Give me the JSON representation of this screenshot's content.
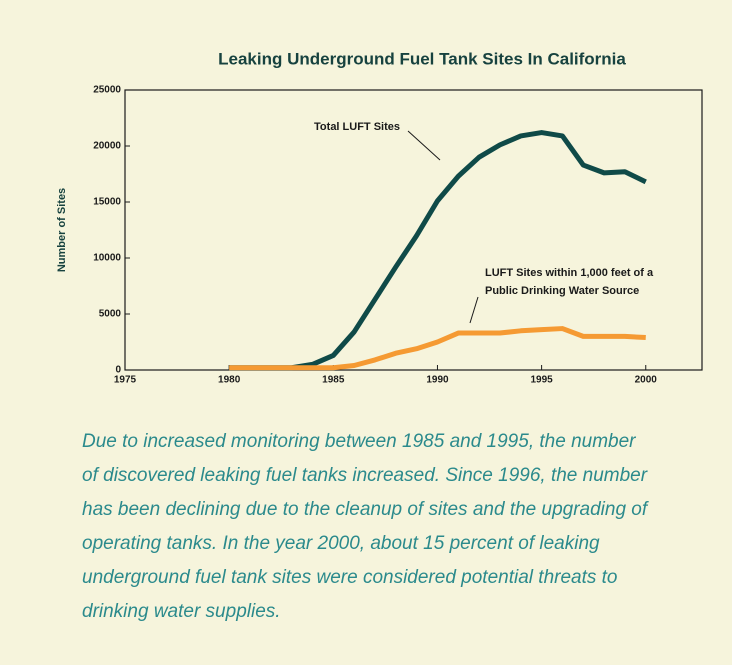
{
  "chart_data": {
    "type": "line",
    "title": "Leaking Underground Fuel Tank Sites In California",
    "ylabel": "Number of Sites",
    "x": [
      1980,
      1981,
      1982,
      1983,
      1984,
      1985,
      1986,
      1987,
      1988,
      1989,
      1990,
      1991,
      1992,
      1993,
      1994,
      1995,
      1996,
      1997,
      1998,
      1999,
      2000
    ],
    "series": [
      {
        "name": "Total LUFT Sites",
        "color": "#0f4a48",
        "values": [
          200,
          200,
          200,
          200,
          500,
          1300,
          3400,
          6300,
          9200,
          12000,
          15100,
          17300,
          19000,
          20100,
          20900,
          21200,
          20900,
          18300,
          17600,
          17700,
          16800
        ]
      },
      {
        "name": "LUFT Sites within 1,000 feet of a Public Drinking Water Source",
        "color": "#f59a33",
        "values": [
          200,
          200,
          200,
          200,
          200,
          200,
          400,
          900,
          1500,
          1900,
          2500,
          3300,
          3300,
          3300,
          3500,
          3600,
          3700,
          3000,
          3000,
          3000,
          2900
        ]
      }
    ],
    "annotations": [
      {
        "lines": [
          "Total LUFT Sites"
        ]
      },
      {
        "lines": [
          "LUFT Sites within 1,000 feet of a",
          "Public Drinking Water Source"
        ]
      }
    ],
    "xlim": [
      1975,
      2002.7
    ],
    "xticks": [
      1975,
      1980,
      1985,
      1990,
      1995,
      2000
    ],
    "ylim": [
      0,
      25000
    ],
    "yticks": [
      0,
      5000,
      10000,
      15000,
      20000,
      25000
    ]
  },
  "caption": [
    "Due to increased monitoring between 1985 and 1995, the number",
    "of discovered leaking fuel tanks increased. Since 1996, the number",
    "has been declining due to the cleanup of sites and the upgrading of",
    "operating tanks. In the year 2000, about 15 percent of leaking",
    "underground fuel tank sites were considered potential threats to",
    "drinking water supplies."
  ]
}
